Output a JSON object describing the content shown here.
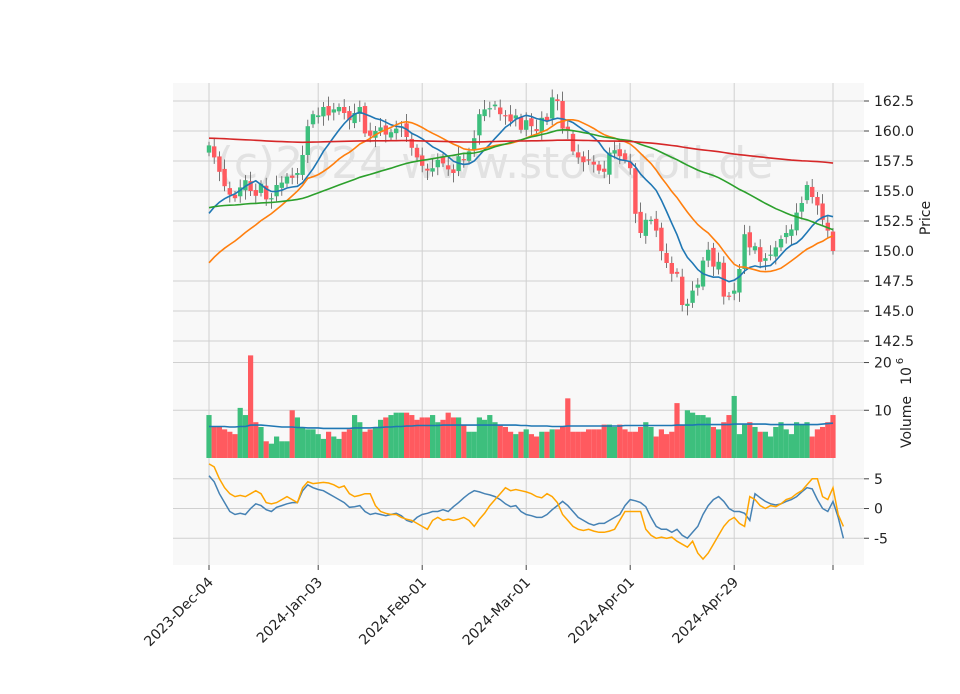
{
  "watermark": "(c)2024 www.stockroll.de",
  "chart_data": {
    "type": "candlestick",
    "panels": {
      "price": {
        "ylabel": "Price",
        "ylim": [
          141.5,
          164.0
        ],
        "ticks": [
          142.5,
          145.0,
          147.5,
          150.0,
          152.5,
          155.0,
          157.5,
          160.0,
          162.5
        ],
        "tick_labels": [
          "142.5",
          "145.0",
          "147.5",
          "150.0",
          "152.5",
          "155.0",
          "157.5",
          "160.0",
          "162.5"
        ],
        "ma_series": [
          {
            "key": "short",
            "color": "#1f77b4"
          },
          {
            "key": "medium",
            "color": "#ff7f0e"
          },
          {
            "key": "long",
            "color": "#2ca02c"
          },
          {
            "key": "longest",
            "color": "#d62728"
          }
        ]
      },
      "volume": {
        "ylabel": "Volume",
        "unit_label": "10",
        "unit_exp": "6",
        "ylim": [
          0,
          22
        ],
        "ticks": [
          10,
          20
        ],
        "tick_labels": [
          "10",
          "20"
        ],
        "ma_color": "#1f77b4"
      },
      "oscillator": {
        "ylim": [
          -9.5,
          8.5
        ],
        "ticks": [
          -5,
          0,
          5
        ],
        "tick_labels": [
          "-5",
          "0",
          "5"
        ],
        "colors": [
          "#4682b4",
          "#ffa500"
        ]
      }
    },
    "x_ticks": [
      {
        "index": 0,
        "label": "2023-Dec-04"
      },
      {
        "index": 21,
        "label": "2024-Jan-03"
      },
      {
        "index": 41,
        "label": "2024-Feb-01"
      },
      {
        "index": 61,
        "label": "2024-Mar-01"
      },
      {
        "index": 81,
        "label": "2024-Apr-01"
      },
      {
        "index": 101,
        "label": "2024-Apr-29"
      },
      {
        "index": 120,
        "label": ""
      }
    ],
    "up_color": "#3dbf7d",
    "down_color": "#ff5a5f",
    "close": [
      158.8,
      157.8,
      156.6,
      155.4,
      154.7,
      154.4,
      155.3,
      155.9,
      155.0,
      154.6,
      155.6,
      154.3,
      154.4,
      155.5,
      155.7,
      156.2,
      156.1,
      156.5,
      158.0,
      160.4,
      161.4,
      161.3,
      162.0,
      161.3,
      161.8,
      162.0,
      161.5,
      160.9,
      161.5,
      162.0,
      159.8,
      159.6,
      160.0,
      160.3,
      159.7,
      159.9,
      160.2,
      160.4,
      159.5,
      158.6,
      157.8,
      157.1,
      156.7,
      156.9,
      157.6,
      157.3,
      156.8,
      156.5,
      157.9,
      157.6,
      158.3,
      159.4,
      161.4,
      161.8,
      161.9,
      162.2,
      161.4,
      161.3,
      160.8,
      161.3,
      160.1,
      160.9,
      160.4,
      160.0,
      161.1,
      160.8,
      162.8,
      162.5,
      160.2,
      160.0,
      158.3,
      157.8,
      157.4,
      157.6,
      157.2,
      156.7,
      156.6,
      158.2,
      158.4,
      157.9,
      157.6,
      156.9,
      153.1,
      151.5,
      152.6,
      152.6,
      151.7,
      150.0,
      149.0,
      148.1,
      148.1,
      145.5,
      145.6,
      146.7,
      147.2,
      149.2,
      150.1,
      148.7,
      149.1,
      146.2,
      146.2,
      146.7,
      148.5,
      151.4,
      150.3,
      150.4,
      149.1,
      149.4,
      149.7,
      150.3,
      151.0,
      151.5,
      151.8,
      153.2,
      154.0,
      155.5,
      154.5,
      153.8,
      152.6,
      151.7,
      150.0
    ],
    "volume_scale_note": "volume in millions",
    "volume": [
      9.0,
      6.5,
      6.5,
      6.0,
      5.5,
      5.0,
      10.5,
      9.0,
      21.5,
      7.5,
      6.5,
      3.5,
      3.0,
      4.5,
      3.5,
      3.5,
      10.0,
      8.5,
      6.5,
      6.0,
      6.0,
      5.0,
      4.0,
      5.5,
      4.5,
      4.0,
      5.5,
      6.0,
      9.0,
      7.5,
      5.5,
      6.0,
      6.5,
      8.0,
      8.5,
      9.0,
      9.5,
      9.5,
      9.5,
      9.0,
      8.0,
      8.5,
      8.5,
      9.0,
      7.5,
      8.0,
      9.5,
      8.5,
      8.5,
      7.0,
      5.5,
      5.5,
      8.5,
      8.0,
      9.0,
      7.5,
      7.0,
      6.5,
      5.5,
      5.0,
      5.5,
      6.0,
      5.0,
      4.5,
      5.5,
      5.5,
      6.0,
      6.0,
      6.5,
      12.5,
      5.5,
      5.5,
      5.5,
      6.0,
      6.0,
      6.0,
      7.0,
      7.0,
      6.5,
      7.0,
      6.0,
      5.5,
      5.5,
      6.5,
      7.5,
      6.5,
      4.5,
      6.0,
      5.0,
      5.5,
      11.5,
      7.0,
      10.0,
      9.5,
      9.0,
      9.0,
      8.5,
      6.5,
      6.0,
      7.5,
      9.0,
      13.0,
      5.0,
      7.0,
      7.5,
      6.5,
      5.5,
      5.5,
      4.5,
      6.5,
      7.5,
      6.0,
      5.0,
      7.5,
      7.0,
      7.5,
      4.5,
      6.0,
      6.5,
      7.5,
      9.0
    ],
    "volume_ma": [
      6.6,
      6.6,
      6.6,
      6.6,
      6.5,
      6.5,
      6.6,
      6.6,
      6.9,
      6.9,
      6.9,
      6.8,
      6.7,
      6.6,
      6.5,
      6.5,
      6.5,
      6.4,
      6.4,
      6.3,
      6.3,
      6.3,
      6.2,
      6.2,
      6.2,
      6.2,
      6.2,
      6.2,
      6.3,
      6.3,
      6.3,
      6.3,
      6.4,
      6.4,
      6.5,
      6.5,
      6.6,
      6.6,
      6.7,
      6.7,
      6.8,
      6.8,
      6.8,
      6.8,
      6.8,
      6.9,
      6.9,
      6.9,
      6.9,
      6.9,
      6.9,
      6.9,
      6.9,
      6.9,
      6.9,
      6.9,
      6.9,
      6.9,
      6.9,
      6.9,
      6.8,
      6.8,
      6.7,
      6.7,
      6.7,
      6.7,
      6.6,
      6.6,
      6.6,
      6.7,
      6.7,
      6.7,
      6.7,
      6.7,
      6.7,
      6.7,
      6.7,
      6.7,
      6.7,
      6.7,
      6.8,
      6.8,
      6.8,
      6.8,
      6.8,
      6.8,
      6.8,
      6.8,
      6.8,
      6.8,
      6.9,
      6.9,
      6.9,
      6.9,
      7.0,
      7.0,
      7.0,
      7.0,
      7.0,
      7.0,
      7.0,
      7.1,
      7.1,
      7.1,
      7.1,
      7.1,
      7.1,
      7.1,
      7.0,
      7.0,
      7.0,
      7.0,
      7.0,
      7.0,
      7.0,
      7.0,
      7.0,
      7.0,
      7.1,
      7.2,
      7.3
    ],
    "oscillator": [
      {
        "name": "",
        "values": [
          5.5,
          4.5,
          2.5,
          1.0,
          -0.5,
          -1.0,
          -0.8,
          -1.0,
          0.0,
          0.8,
          0.5,
          -0.2,
          -0.5,
          0.2,
          0.5,
          0.8,
          1.0,
          1.0,
          3.0,
          4.0,
          3.5,
          3.2,
          3.0,
          2.5,
          2.0,
          1.5,
          1.0,
          0.2,
          0.3,
          0.5,
          -0.5,
          -1.0,
          -0.8,
          -1.0,
          -1.2,
          -1.0,
          -0.8,
          -1.2,
          -2.0,
          -2.3,
          -1.5,
          -1.0,
          -0.8,
          -0.5,
          -0.5,
          -0.2,
          -0.5,
          0.3,
          1.0,
          1.8,
          2.5,
          3.0,
          2.8,
          2.5,
          2.3,
          2.0,
          1.5,
          0.8,
          0.3,
          0.5,
          -0.5,
          -1.0,
          -1.2,
          -1.5,
          -1.5,
          -1.0,
          -0.2,
          0.5,
          1.2,
          0.5,
          -0.5,
          -1.5,
          -2.0,
          -2.5,
          -2.8,
          -2.5,
          -2.5,
          -2.0,
          -1.5,
          -1.0,
          0.5,
          1.5,
          1.3,
          1.0,
          0.3,
          -1.5,
          -3.0,
          -3.5,
          -3.5,
          -4.0,
          -3.5,
          -4.5,
          -5.0,
          -4.0,
          -3.0,
          -1.0,
          0.5,
          1.5,
          2.0,
          1.2,
          0.0,
          -0.5,
          -0.5,
          -0.8,
          -2.0,
          2.5,
          1.8,
          1.2,
          0.8,
          0.6,
          0.8,
          1.2,
          1.5,
          2.0,
          2.8,
          3.5,
          3.3,
          1.5,
          0.0,
          -0.5,
          1.2,
          -1.5,
          -5.0
        ]
      },
      {
        "name": "",
        "values": [
          7.5,
          7.0,
          5.0,
          3.5,
          2.5,
          2.0,
          2.2,
          2.0,
          2.5,
          3.0,
          2.5,
          1.0,
          0.8,
          1.0,
          1.5,
          2.0,
          1.5,
          1.0,
          3.5,
          4.5,
          4.2,
          4.3,
          4.4,
          4.3,
          4.0,
          3.5,
          3.8,
          2.5,
          2.0,
          2.2,
          2.5,
          2.5,
          0.5,
          -0.5,
          -0.8,
          -1.0,
          -1.0,
          -1.5,
          -1.8,
          -2.0,
          -2.5,
          -3.0,
          -3.5,
          -2.0,
          -1.5,
          -2.0,
          -1.8,
          -2.0,
          -1.8,
          -1.5,
          -2.0,
          -3.0,
          -1.8,
          -0.8,
          0.5,
          1.5,
          2.5,
          3.5,
          3.0,
          3.2,
          3.0,
          2.8,
          2.5,
          2.0,
          1.8,
          2.5,
          2.0,
          1.0,
          -1.0,
          -2.0,
          -3.0,
          -3.5,
          -3.7,
          -3.5,
          -3.8,
          -4.0,
          -4.0,
          -3.8,
          -3.5,
          -2.0,
          -0.5,
          -0.5,
          -0.5,
          -0.5,
          -3.5,
          -4.5,
          -5.0,
          -4.8,
          -5.0,
          -4.8,
          -5.5,
          -6.0,
          -6.5,
          -5.5,
          -7.5,
          -8.5,
          -7.5,
          -6.0,
          -4.5,
          -3.0,
          -2.0,
          -1.5,
          -2.5,
          -3.0,
          2.0,
          1.5,
          0.5,
          0.0,
          0.5,
          0.3,
          0.8,
          1.5,
          1.8,
          2.5,
          3.0,
          4.0,
          5.0,
          5.0,
          2.0,
          1.5,
          3.5,
          -1.0,
          -3.0
        ]
      }
    ]
  }
}
